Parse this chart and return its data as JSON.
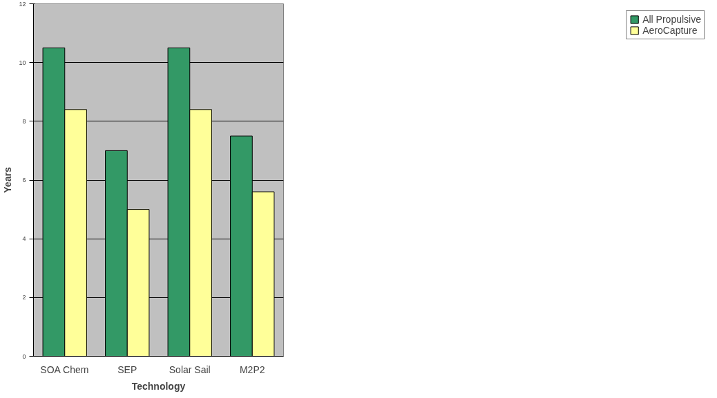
{
  "chart_data": {
    "type": "bar",
    "xlabel": "Technology",
    "ylabel": "Years",
    "categories": [
      "SOA Chem",
      "SEP",
      "Solar Sail",
      "M2P2"
    ],
    "series": [
      {
        "name": "All Propulsive",
        "color": "#339966",
        "values": [
          10.5,
          7.0,
          10.5,
          7.5
        ]
      },
      {
        "name": "AeroCapture",
        "color": "#ffff99",
        "values": [
          8.4,
          5.0,
          8.4,
          5.6
        ]
      }
    ],
    "ylim": [
      0,
      12
    ],
    "yticks": [
      0,
      2,
      4,
      6,
      8,
      10,
      12
    ],
    "grid": "y",
    "legend": "right"
  }
}
